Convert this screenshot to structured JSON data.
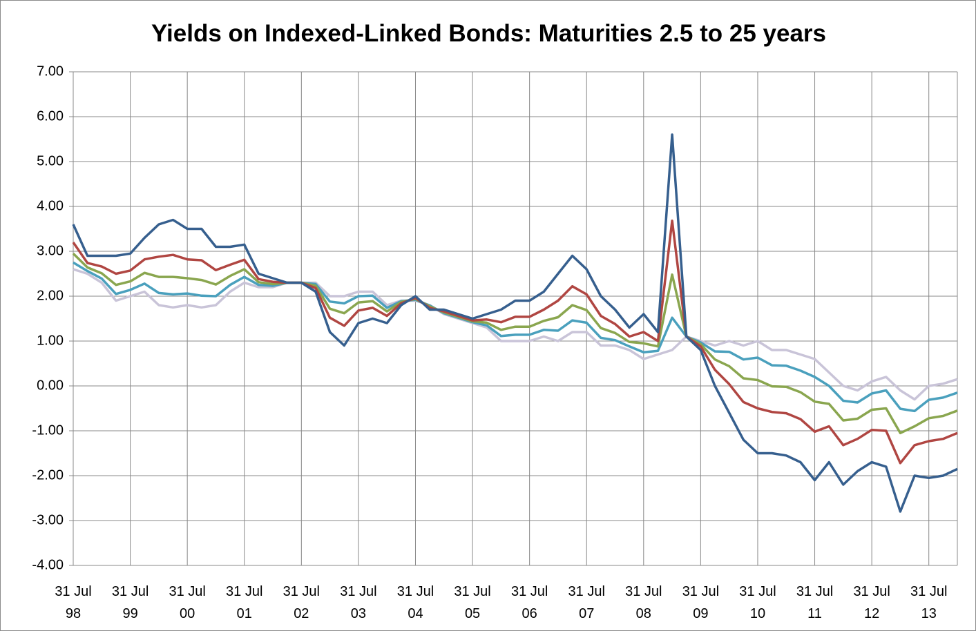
{
  "chart_data": {
    "type": "line",
    "title": "Yields on Indexed-Linked Bonds: Maturities 2.5 to 25 years",
    "categories": [
      "31 Jul 98",
      null,
      null,
      null,
      "31 Jul 99",
      null,
      null,
      null,
      "31 Jul 00",
      null,
      null,
      null,
      "31 Jul 01",
      null,
      null,
      null,
      "31 Jul 02",
      null,
      null,
      null,
      "31 Jul 03",
      null,
      null,
      null,
      "31 Jul 04",
      null,
      null,
      null,
      "31 Jul 05",
      null,
      null,
      null,
      "31 Jul 06",
      null,
      null,
      null,
      "31 Jul 07",
      null,
      null,
      null,
      "31 Jul 08",
      null,
      null,
      null,
      "31 Jul 09",
      null,
      null,
      null,
      "31 Jul 10",
      null,
      null,
      null,
      "31 Jul 11",
      null,
      null,
      null,
      "31 Jul 12",
      null,
      null,
      null,
      "31 Jul 13",
      null,
      null
    ],
    "series": [
      {
        "color": "#c9c4d8",
        "values": [
          2.6,
          2.5,
          2.3,
          1.9,
          2.0,
          2.1,
          1.8,
          1.75,
          1.8,
          1.75,
          1.8,
          2.1,
          2.3,
          2.2,
          2.2,
          2.3,
          2.3,
          2.3,
          2.0,
          2.0,
          2.1,
          2.1,
          1.8,
          1.9,
          1.9,
          1.8,
          1.6,
          1.5,
          1.4,
          1.3,
          1.0,
          1.0,
          1.0,
          1.1,
          1.0,
          1.2,
          1.2,
          0.9,
          0.9,
          0.8,
          0.6,
          0.7,
          0.8,
          1.1,
          1.0,
          0.9,
          1.0,
          0.9,
          1.0,
          0.8,
          0.8,
          0.7,
          0.6,
          0.3,
          0.0,
          -0.1,
          0.1,
          0.2,
          -0.1,
          -0.3,
          0.0,
          0.05,
          0.15
        ]
      },
      {
        "color": "#4aa0bd",
        "values": [
          2.75,
          2.56,
          2.39,
          2.05,
          2.14,
          2.28,
          2.07,
          2.04,
          2.06,
          2.01,
          2.0,
          2.25,
          2.43,
          2.25,
          2.23,
          2.3,
          2.3,
          2.27,
          1.88,
          1.84,
          2.0,
          2.01,
          1.74,
          1.89,
          1.92,
          1.79,
          1.62,
          1.52,
          1.42,
          1.35,
          1.11,
          1.14,
          1.14,
          1.25,
          1.23,
          1.46,
          1.41,
          1.07,
          1.02,
          0.88,
          0.75,
          0.78,
          1.52,
          1.1,
          0.97,
          0.77,
          0.76,
          0.59,
          0.63,
          0.46,
          0.45,
          0.34,
          0.2,
          0.0,
          -0.33,
          -0.37,
          -0.17,
          -0.1,
          -0.51,
          -0.56,
          -0.31,
          -0.26,
          -0.15
        ]
      },
      {
        "color": "#8aa64f",
        "values": [
          2.95,
          2.64,
          2.51,
          2.25,
          2.33,
          2.52,
          2.43,
          2.43,
          2.4,
          2.36,
          2.26,
          2.45,
          2.6,
          2.31,
          2.27,
          2.3,
          2.3,
          2.23,
          1.72,
          1.62,
          1.86,
          1.89,
          1.66,
          1.87,
          1.94,
          1.77,
          1.64,
          1.54,
          1.44,
          1.41,
          1.25,
          1.32,
          1.32,
          1.45,
          1.53,
          1.8,
          1.69,
          1.29,
          1.18,
          0.98,
          0.95,
          0.88,
          2.48,
          1.1,
          0.93,
          0.59,
          0.44,
          0.17,
          0.13,
          -0.01,
          -0.02,
          -0.14,
          -0.35,
          -0.4,
          -0.77,
          -0.73,
          -0.53,
          -0.5,
          -1.05,
          -0.9,
          -0.72,
          -0.67,
          -0.55
        ]
      },
      {
        "color": "#b04642",
        "values": [
          3.2,
          2.74,
          2.66,
          2.5,
          2.57,
          2.82,
          2.88,
          2.92,
          2.82,
          2.8,
          2.58,
          2.7,
          2.81,
          2.38,
          2.32,
          2.3,
          2.3,
          2.18,
          1.52,
          1.34,
          1.68,
          1.74,
          1.56,
          1.84,
          1.96,
          1.74,
          1.66,
          1.56,
          1.46,
          1.48,
          1.42,
          1.54,
          1.54,
          1.7,
          1.9,
          2.22,
          2.04,
          1.56,
          1.38,
          1.1,
          1.2,
          1.0,
          3.68,
          1.1,
          0.88,
          0.36,
          0.04,
          -0.36,
          -0.5,
          -0.58,
          -0.61,
          -0.74,
          -1.02,
          -0.9,
          -1.32,
          -1.18,
          -0.98,
          -1.0,
          -1.72,
          -1.32,
          -1.23,
          -1.18,
          -1.05
        ]
      },
      {
        "color": "#365f8e",
        "values": [
          3.6,
          2.9,
          2.9,
          2.9,
          2.95,
          3.3,
          3.6,
          3.7,
          3.5,
          3.5,
          3.1,
          3.1,
          3.15,
          2.5,
          2.4,
          2.3,
          2.3,
          2.1,
          1.2,
          0.9,
          1.4,
          1.5,
          1.4,
          1.8,
          2.0,
          1.7,
          1.7,
          1.6,
          1.5,
          1.6,
          1.7,
          1.9,
          1.9,
          2.1,
          2.5,
          2.9,
          2.6,
          2.0,
          1.7,
          1.3,
          1.6,
          1.2,
          5.6,
          1.1,
          0.8,
          0.0,
          -0.6,
          -1.2,
          -1.5,
          -1.5,
          -1.55,
          -1.7,
          -2.1,
          -1.7,
          -2.2,
          -1.9,
          -1.7,
          -1.8,
          -2.8,
          -2.0,
          -2.05,
          -2.0,
          -1.85
        ]
      }
    ],
    "ylim": [
      -4,
      7
    ],
    "yticks": [
      {
        "value": -4,
        "label": "-4.00"
      },
      {
        "value": -3,
        "label": "-3.00"
      },
      {
        "value": -2,
        "label": "-2.00"
      },
      {
        "value": -1,
        "label": "-1.00"
      },
      {
        "value": 0,
        "label": "0.00"
      },
      {
        "value": 1,
        "label": "1.00"
      },
      {
        "value": 2,
        "label": "2.00"
      },
      {
        "value": 3,
        "label": "3.00"
      },
      {
        "value": 4,
        "label": "4.00"
      },
      {
        "value": 5,
        "label": "5.00"
      },
      {
        "value": 6,
        "label": "6.00"
      },
      {
        "value": 7,
        "label": "7.00"
      }
    ],
    "grid": true
  }
}
